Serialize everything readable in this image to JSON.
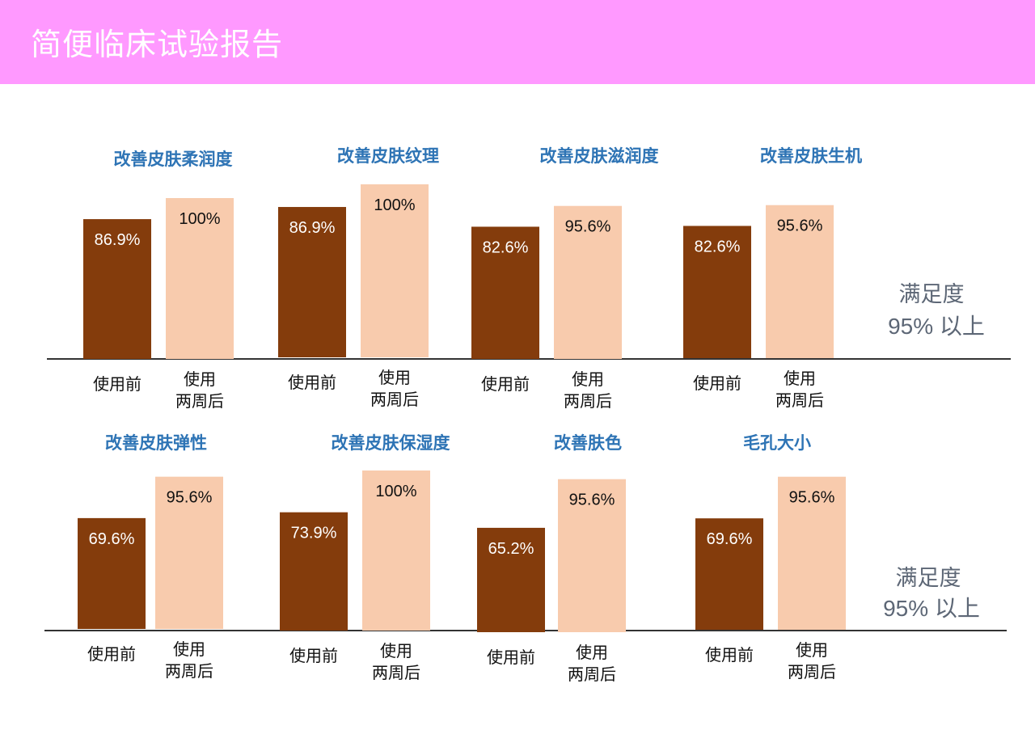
{
  "header": {
    "title": "简便临床试验报告"
  },
  "colors": {
    "banner": "#ff99ff",
    "title_text": "#ffffff",
    "chart_title": "#2e74b5",
    "before_bar": "#843c0c",
    "after_bar": "#f8cbad",
    "before_label": "#ffffff",
    "after_label": "#111111",
    "baseline": "#333333"
  },
  "rows": [
    {
      "satisfaction": {
        "line1": "满足度",
        "line2": "95% 以上"
      }
    },
    {
      "satisfaction": {
        "line1": "满足度",
        "line2": "95% 以上"
      }
    }
  ],
  "chart_data": [
    {
      "type": "bar",
      "title": "改善皮肤柔润度",
      "categories": [
        "使用前",
        "使用\n两周后"
      ],
      "values": [
        86.9,
        100
      ],
      "labels": [
        "86.9%",
        "100%"
      ]
    },
    {
      "type": "bar",
      "title": "改善皮肤纹理",
      "categories": [
        "使用前",
        "使用\n两周后"
      ],
      "values": [
        86.9,
        100
      ],
      "labels": [
        "86.9%",
        "100%"
      ]
    },
    {
      "type": "bar",
      "title": "改善皮肤滋润度",
      "categories": [
        "使用前",
        "使用\n两周后"
      ],
      "values": [
        82.6,
        95.6
      ],
      "labels": [
        "82.6%",
        "95.6%"
      ]
    },
    {
      "type": "bar",
      "title": "改善皮肤生机",
      "categories": [
        "使用前",
        "使用\n两周后"
      ],
      "values": [
        82.6,
        95.6
      ],
      "labels": [
        "82.6%",
        "95.6%"
      ]
    },
    {
      "type": "bar",
      "title": "改善皮肤弹性",
      "categories": [
        "使用前",
        "使用\n两周后"
      ],
      "values": [
        69.6,
        95.6
      ],
      "labels": [
        "69.6%",
        "95.6%"
      ]
    },
    {
      "type": "bar",
      "title": "改善皮肤保湿度",
      "categories": [
        "使用前",
        "使用\n两周后"
      ],
      "values": [
        73.9,
        100
      ],
      "labels": [
        "73.9%",
        "100%"
      ]
    },
    {
      "type": "bar",
      "title": "改善肤色",
      "categories": [
        "使用前",
        "使用\n两周后"
      ],
      "values": [
        65.2,
        95.6
      ],
      "labels": [
        "65.2%",
        "95.6%"
      ]
    },
    {
      "type": "bar",
      "title": "毛孔大小",
      "categories": [
        "使用前",
        "使用\n两周后"
      ],
      "values": [
        69.6,
        95.6
      ],
      "labels": [
        "69.6%",
        "95.6%"
      ]
    }
  ]
}
